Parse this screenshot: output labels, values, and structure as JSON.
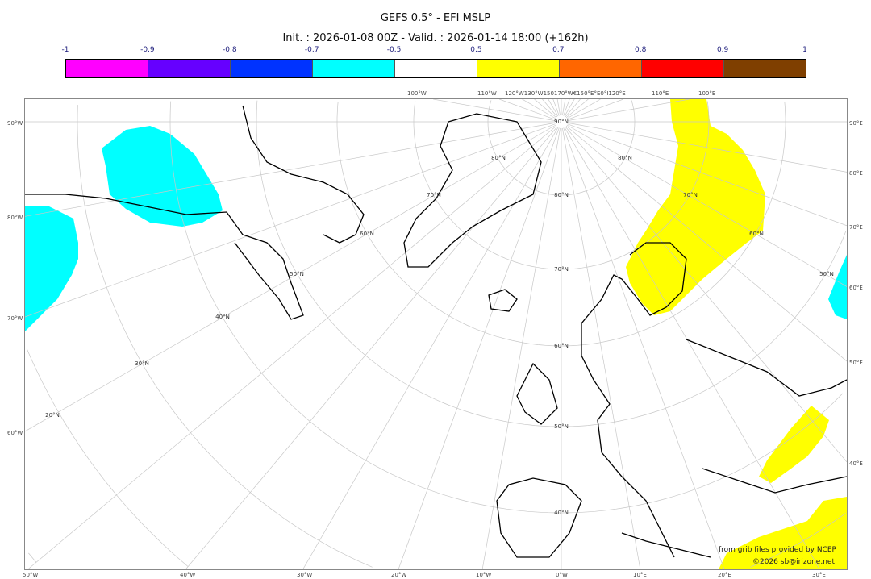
{
  "title": "GEFS 0.5° - EFI MSLP",
  "subtitle": "Init. : 2026-01-08 00Z - Valid. : 2026-01-14 18:00 (+162h)",
  "colorbar": {
    "ticks": [
      "-1",
      "-0.9",
      "-0.8",
      "-0.7",
      "-0.5",
      "0.5",
      "0.7",
      "0.8",
      "0.9",
      "1"
    ],
    "colors": [
      "#ff00ff",
      "#6600ff",
      "#0033ff",
      "#00ffff",
      "#ffffff",
      "#ffff00",
      "#ff6600",
      "#ff0000",
      "#7f3f00"
    ]
  },
  "map": {
    "top_labels": [
      "100°W",
      "110°W",
      "120°W130°W150170°W€150°E°E0°I120°E",
      "110°E",
      "100°E"
    ],
    "left_labels": [
      "90°W",
      "80°W",
      "70°W",
      "60°W"
    ],
    "right_labels": [
      "90°E",
      "80°E",
      "70°E",
      "60°E",
      "50°E",
      "40°E"
    ],
    "bottom_labels": [
      "50°W",
      "40°W",
      "30°W",
      "20°W",
      "10°W",
      "0°W",
      "10°E",
      "20°E",
      "30°E"
    ],
    "lat_labels": [
      "90°N",
      "80°N",
      "70°N",
      "60°N",
      "50°N",
      "40°N",
      "30°N",
      "20°N",
      "80°N",
      "70°N",
      "60°N",
      "50°N",
      "80°N",
      "70°N",
      "60°N",
      "50°N",
      "40°N"
    ],
    "colors": {
      "negative": "#00ffff",
      "positive": "#ffff00",
      "coast": "#000000",
      "grid": "#c8c8c8"
    }
  },
  "credits": {
    "line1": "from grib files provided by NCEP",
    "line2": "©2026 sb@irizone.net"
  }
}
